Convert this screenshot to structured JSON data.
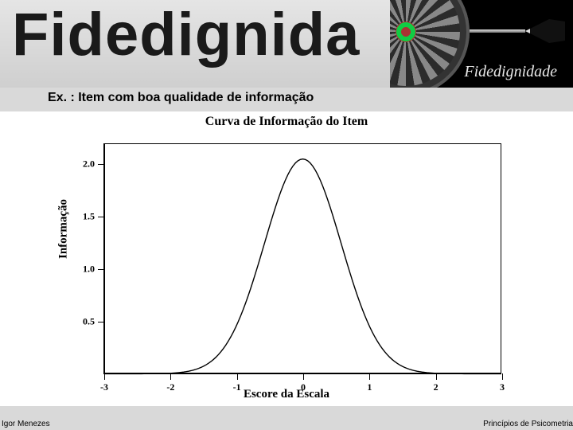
{
  "header": {
    "title_big": "Fidedignida",
    "panel_label": "Fidedignidade"
  },
  "subtitle": "Ex. : Item com boa qualidade de informação",
  "chart": {
    "type": "line",
    "title": "Curva de Informação do Item",
    "xlabel": "Escore da Escala",
    "ylabel": "Informação",
    "xlim": [
      -3,
      3
    ],
    "ylim": [
      0,
      2.2
    ],
    "xticks": [
      -3,
      -2,
      -1,
      0,
      1,
      2,
      3
    ],
    "yticks": [
      0.5,
      1.0,
      1.5,
      2.0
    ],
    "ytick_labels": [
      "0.5",
      "1.0",
      "1.5",
      "2.0"
    ],
    "line_color": "#000000",
    "line_width": 1.4,
    "background_color": "#ffffff",
    "title_fontsize": 16,
    "label_fontsize": 15,
    "tick_fontsize": 12,
    "font_family": "Times New Roman",
    "curve": {
      "peak": 2.05,
      "center": 0,
      "sigma": 0.58
    }
  },
  "footer": {
    "left": "Igor Menezes",
    "right": "Princípios de Psicometria"
  }
}
